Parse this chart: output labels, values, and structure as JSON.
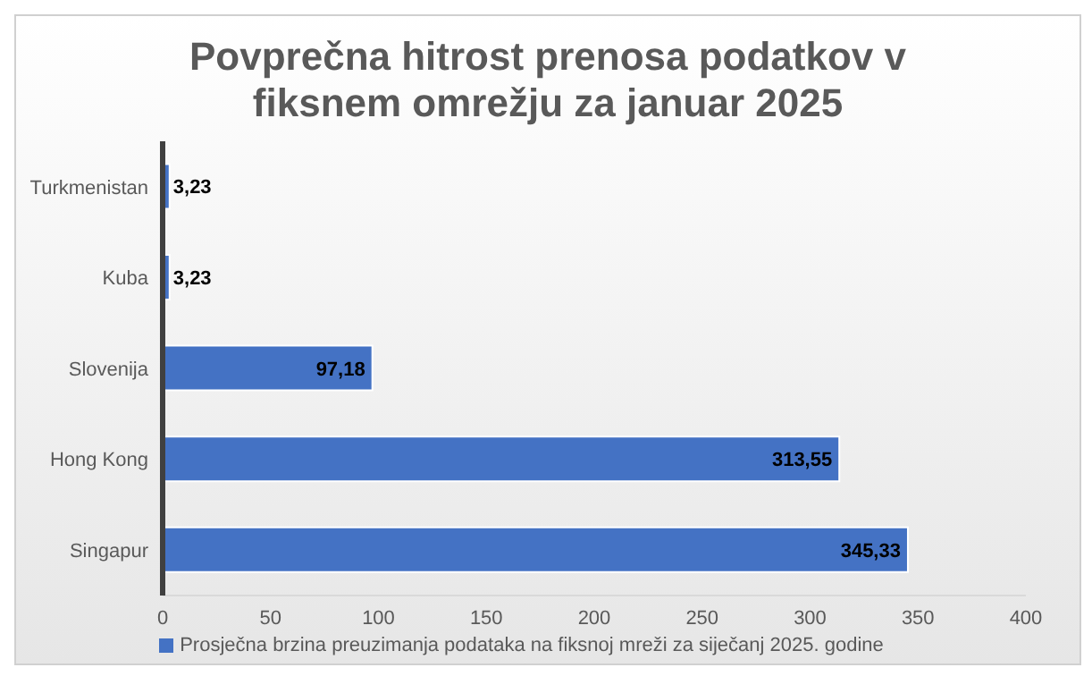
{
  "chart_data": {
    "type": "bar",
    "orientation": "horizontal",
    "title": "Povprečna hitrost prenosa podatkov v fiksnem omrežju za januar 2025",
    "categories": [
      "Turkmenistan",
      "Kuba",
      "Slovenija",
      "Hong Kong",
      "Singapur"
    ],
    "series": [
      {
        "name": "Prosječna brzina preuzimanja podataka na fiksnoj mreži za siječanj 2025. godine",
        "color": "#4472c4",
        "values": [
          3.23,
          3.23,
          97.18,
          313.55,
          345.33
        ],
        "value_labels": [
          "3,23",
          "3,23",
          "97,18",
          "313,55",
          "345,33"
        ]
      }
    ],
    "xlim": [
      0,
      400
    ],
    "xticks": [
      0,
      50,
      100,
      150,
      200,
      250,
      300,
      350,
      400
    ],
    "grid": false,
    "legend": "bottom"
  }
}
